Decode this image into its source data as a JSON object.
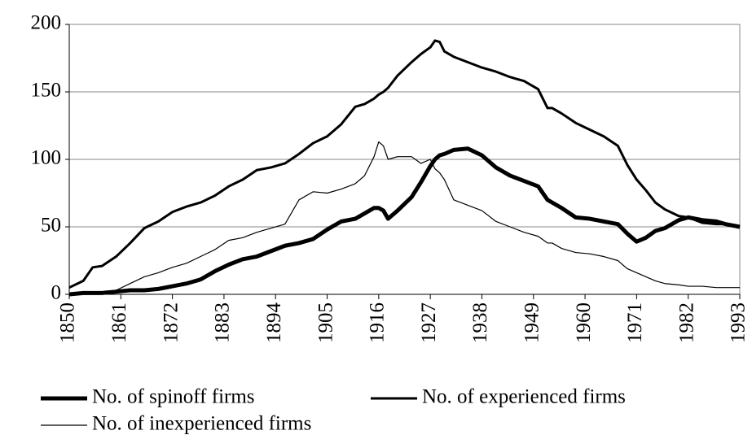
{
  "chart_data": {
    "type": "line",
    "x": [
      1850,
      1853,
      1855,
      1857,
      1860,
      1863,
      1866,
      1869,
      1872,
      1875,
      1878,
      1881,
      1884,
      1887,
      1890,
      1893,
      1896,
      1899,
      1902,
      1905,
      1908,
      1911,
      1913,
      1915,
      1916,
      1917,
      1918,
      1920,
      1923,
      1925,
      1927,
      1928,
      1929,
      1930,
      1932,
      1935,
      1938,
      1941,
      1944,
      1947,
      1950,
      1952,
      1953,
      1955,
      1958,
      1961,
      1964,
      1967,
      1969,
      1971,
      1973,
      1975,
      1977,
      1980,
      1982,
      1985,
      1988,
      1990,
      1993
    ],
    "series": [
      {
        "name": "No. of spinoff firms",
        "color": "#000000",
        "line_width": 5,
        "values": [
          0,
          1,
          1,
          1,
          2,
          3,
          3,
          4,
          6,
          8,
          11,
          17,
          22,
          26,
          28,
          32,
          36,
          38,
          41,
          48,
          54,
          56,
          60,
          64,
          64,
          62,
          56,
          62,
          72,
          83,
          95,
          100,
          103,
          104,
          107,
          108,
          103,
          94,
          88,
          84,
          80,
          70,
          68,
          64,
          57,
          56,
          54,
          52,
          45,
          39,
          42,
          47,
          49,
          55,
          57,
          55,
          54,
          52,
          50
        ]
      },
      {
        "name": "No. of experienced firms",
        "color": "#000000",
        "line_width": 3,
        "values": [
          5,
          10,
          20,
          21,
          28,
          38,
          49,
          54,
          61,
          65,
          68,
          73,
          80,
          85,
          92,
          94,
          97,
          104,
          112,
          117,
          126,
          139,
          141,
          145,
          148,
          150,
          153,
          162,
          172,
          178,
          183,
          188,
          187,
          180,
          176,
          172,
          168,
          165,
          161,
          158,
          152,
          138,
          138,
          134,
          127,
          122,
          117,
          110,
          96,
          85,
          77,
          68,
          63,
          58,
          57,
          53,
          52,
          52,
          50
        ]
      },
      {
        "name": "No. of inexperienced firms",
        "color": "#000000",
        "line_width": 1.2,
        "values": [
          0,
          0,
          0,
          1,
          3,
          8,
          13,
          16,
          20,
          23,
          28,
          33,
          40,
          42,
          46,
          49,
          52,
          70,
          76,
          75,
          78,
          82,
          88,
          102,
          113,
          110,
          100,
          102,
          102,
          97,
          100,
          93,
          90,
          85,
          70,
          66,
          62,
          54,
          50,
          46,
          43,
          38,
          38,
          34,
          31,
          30,
          28,
          25,
          19,
          16,
          13,
          10,
          8,
          7,
          6,
          6,
          5,
          5,
          5
        ]
      }
    ],
    "xlim": [
      1850,
      1993
    ],
    "xticks": [
      1850,
      1861,
      1872,
      1883,
      1894,
      1905,
      1916,
      1927,
      1938,
      1949,
      1960,
      1971,
      1982,
      1993
    ],
    "ylim": [
      0,
      200
    ],
    "yticks": [
      0,
      50,
      100,
      150,
      200
    ],
    "grid": true
  }
}
